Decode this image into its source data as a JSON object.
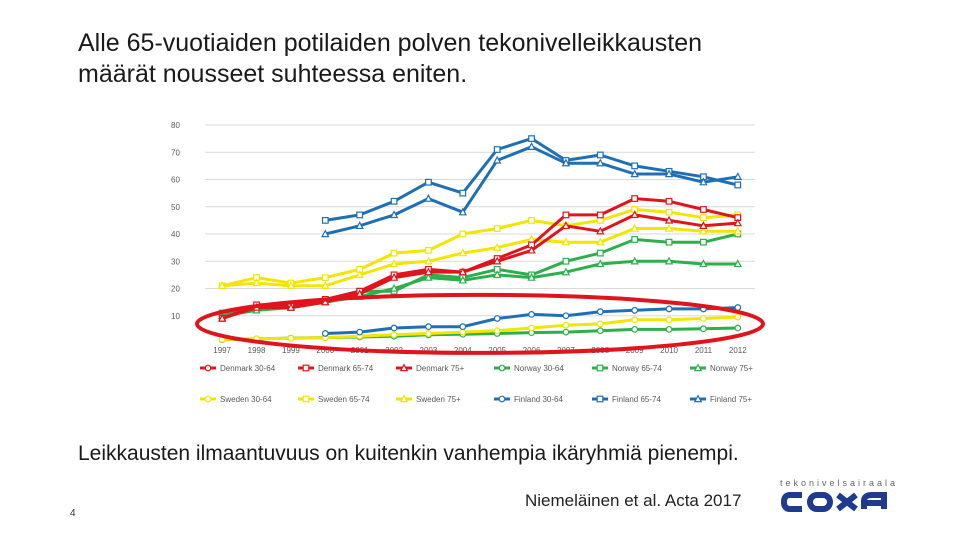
{
  "slide": {
    "title_line1": "Alle 65-vuotiaiden potilaiden polven tekonivelleikkausten",
    "title_line2": "määrät nousseet suhteessa eniten.",
    "subtitle": "Leikkausten ilmaantuvuus on kuitenkin vanhempia ikäryhmiä pienempi.",
    "citation": "Niemeläinen et al. Acta 2017",
    "page_number": "4"
  },
  "logo": {
    "tagline": "tekonivelsairaala",
    "name": "COXA",
    "color": "#1f3a8f"
  },
  "highlight_color": "#e0141c",
  "chart_data": {
    "type": "line",
    "title": "",
    "xlabel": "",
    "ylabel": "",
    "ylim": [
      0,
      80
    ],
    "yticks": [
      10,
      20,
      30,
      40,
      50,
      60,
      70,
      80
    ],
    "x": [
      "1997",
      "1998",
      "1999",
      "2000",
      "2001",
      "2002",
      "2003",
      "2004",
      "2005",
      "2006",
      "2007",
      "2008",
      "2009",
      "2010",
      "2011",
      "2012"
    ],
    "x_labels_visible": [
      "1997",
      "1998",
      "1999",
      "2000",
      "2001",
      "2002",
      "2003",
      "2004",
      "2005",
      "2006",
      "2007",
      "2008",
      "2009",
      "2010",
      "2011",
      "2012"
    ],
    "grid": true,
    "legend": "bottom",
    "series": [
      {
        "name": "Denmark 30-64",
        "color": "#e0141c",
        "marker": "circle",
        "values": [
          null,
          null,
          null,
          null,
          null,
          null,
          null,
          null,
          null,
          null,
          null,
          null,
          null,
          null,
          null,
          null
        ]
      },
      {
        "name": "Denmark 65-74",
        "color": "#e0141c",
        "marker": "square",
        "values": [
          null,
          null,
          null,
          null,
          null,
          null,
          null,
          null,
          null,
          null,
          null,
          null,
          null,
          null,
          null,
          null
        ]
      },
      {
        "name": "Denmark 75+",
        "color": "#e0141c",
        "marker": "triangle",
        "values": [
          null,
          null,
          null,
          null,
          null,
          null,
          null,
          null,
          null,
          null,
          null,
          null,
          null,
          null,
          null,
          null
        ]
      },
      {
        "name": "Norway 30-64",
        "color": "#2db04b",
        "marker": "circle",
        "values": [
          1.2,
          1.5,
          1.8,
          2.0,
          2.2,
          2.5,
          3.0,
          3.2,
          3.5,
          3.8,
          4.0,
          4.5,
          5.0,
          5.0,
          5.2,
          5.5
        ]
      },
      {
        "name": "Norway 65-74",
        "color": "#2db04b",
        "marker": "square",
        "values": [
          11,
          13,
          13,
          16,
          19,
          19,
          25,
          24,
          27,
          25,
          30,
          33,
          38,
          37,
          37,
          40
        ]
      },
      {
        "name": "Norway 75+",
        "color": "#2db04b",
        "marker": "triangle",
        "values": [
          10,
          12,
          13,
          15,
          17,
          20,
          24,
          23,
          25,
          24,
          26,
          29,
          30,
          30,
          29,
          29
        ]
      },
      {
        "name": "Sweden 30-64",
        "color": "#f2e600",
        "marker": "circle",
        "values": [
          1.3,
          1.6,
          1.7,
          2.0,
          2.5,
          3.0,
          3.5,
          4.0,
          4.5,
          5.5,
          6.5,
          7.0,
          8.5,
          8.5,
          9.0,
          9.5
        ]
      },
      {
        "name": "Sweden 65-74",
        "color": "#f2e600",
        "marker": "square",
        "values": [
          21,
          24,
          22,
          24,
          27,
          33,
          34,
          40,
          42,
          45,
          43,
          45,
          49,
          48,
          46,
          47
        ]
      },
      {
        "name": "Sweden 75+",
        "color": "#f2e600",
        "marker": "triangle",
        "values": [
          21,
          22,
          21,
          21,
          25,
          29,
          30,
          33,
          35,
          38,
          37,
          37,
          42,
          42,
          41,
          41
        ]
      },
      {
        "name": "Finland 30-64",
        "color": "#1f6fb4",
        "marker": "circle",
        "values": [
          null,
          null,
          null,
          3.5,
          4.0,
          5.5,
          6.0,
          6.0,
          9.0,
          10.5,
          10.0,
          11.5,
          12.0,
          12.5,
          12.5,
          13.0
        ]
      },
      {
        "name": "Finland 65-74",
        "color": "#1f6fb4",
        "marker": "square",
        "values": [
          null,
          null,
          null,
          45,
          47,
          52,
          59,
          55,
          71,
          75,
          67,
          69,
          65,
          63,
          61,
          58
        ]
      },
      {
        "name": "Finland 75+",
        "color": "#1f6fb4",
        "marker": "triangle",
        "values": [
          null,
          null,
          null,
          40,
          43,
          47,
          53,
          48,
          67,
          72,
          66,
          66,
          62,
          62,
          59,
          61
        ]
      }
    ],
    "denmark_overlay": [
      {
        "values": [
          9,
          14,
          14,
          16,
          19,
          25,
          27,
          26,
          31,
          36,
          47,
          47,
          53,
          52,
          49,
          46
        ]
      },
      {
        "values": [
          9,
          13,
          13,
          15,
          18,
          24,
          26,
          26,
          30,
          34,
          43,
          41,
          47,
          45,
          43,
          44
        ]
      }
    ]
  }
}
